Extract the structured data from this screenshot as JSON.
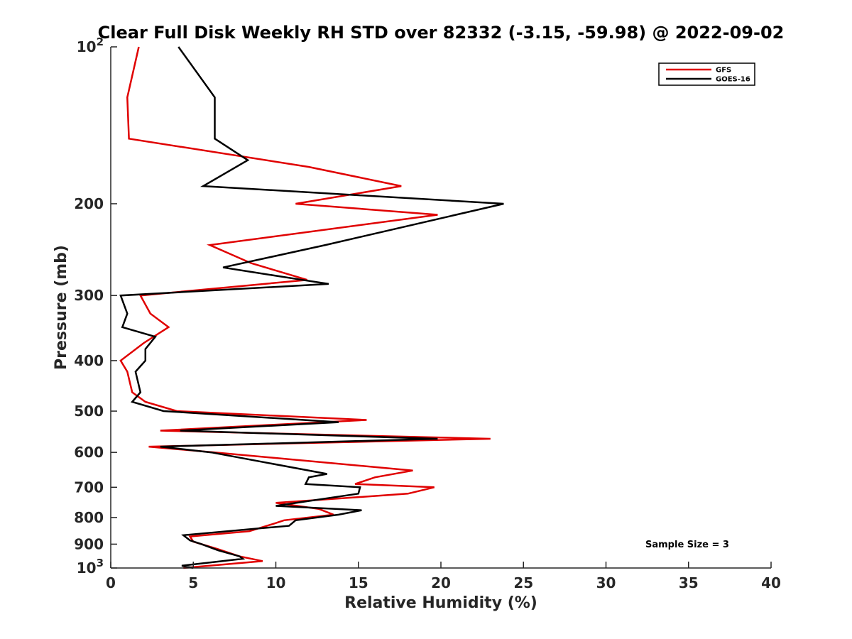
{
  "chart_data": {
    "type": "line",
    "title": "Clear Full Disk Weekly RH STD over 82332 (-3.15, -59.98) @ 2022-09-02",
    "xlabel": "Relative Humidity (%)",
    "ylabel": "Pressure (mb)",
    "xlim": [
      0,
      40
    ],
    "ylim": [
      100,
      1000
    ],
    "y_scale": "log",
    "y_reversed": true,
    "x_ticks": [
      "0",
      "5",
      "10",
      "15",
      "20",
      "25",
      "30",
      "35",
      "40"
    ],
    "y_ticks": [
      {
        "value": 100,
        "label": "10",
        "sup": "2"
      },
      {
        "value": 200,
        "label": "200",
        "sup": ""
      },
      {
        "value": 300,
        "label": "300",
        "sup": ""
      },
      {
        "value": 400,
        "label": "400",
        "sup": ""
      },
      {
        "value": 500,
        "label": "500",
        "sup": ""
      },
      {
        "value": 600,
        "label": "600",
        "sup": ""
      },
      {
        "value": 700,
        "label": "700",
        "sup": ""
      },
      {
        "value": 800,
        "label": "800",
        "sup": ""
      },
      {
        "value": 900,
        "label": "900",
        "sup": ""
      },
      {
        "value": 1000,
        "label": "10",
        "sup": "3"
      }
    ],
    "grid": false,
    "legend_position": "top-right",
    "annotation": "Sample Size = 3",
    "series": [
      {
        "name": "GFS",
        "color": "#e00000",
        "points": [
          [
            1.7,
            100
          ],
          [
            1.0,
            125
          ],
          [
            1.1,
            150
          ],
          [
            12.0,
            170
          ],
          [
            17.6,
            185
          ],
          [
            11.2,
            200
          ],
          [
            19.8,
            210
          ],
          [
            6.0,
            240
          ],
          [
            8.5,
            260
          ],
          [
            11.9,
            280
          ],
          [
            1.8,
            300
          ],
          [
            2.4,
            325
          ],
          [
            3.5,
            345
          ],
          [
            2.0,
            370
          ],
          [
            0.6,
            400
          ],
          [
            1.0,
            420
          ],
          [
            1.3,
            460
          ],
          [
            2.1,
            480
          ],
          [
            4.0,
            500
          ],
          [
            15.5,
            520
          ],
          [
            3.0,
            545
          ],
          [
            23.0,
            565
          ],
          [
            2.3,
            585
          ],
          [
            6.3,
            600
          ],
          [
            18.3,
            650
          ],
          [
            16.0,
            670
          ],
          [
            14.8,
            690
          ],
          [
            19.6,
            700
          ],
          [
            18.0,
            720
          ],
          [
            10.0,
            750
          ],
          [
            12.6,
            770
          ],
          [
            13.5,
            790
          ],
          [
            10.5,
            810
          ],
          [
            10.0,
            820
          ],
          [
            8.4,
            850
          ],
          [
            4.8,
            870
          ],
          [
            5.0,
            890
          ],
          [
            6.5,
            920
          ],
          [
            7.8,
            950
          ],
          [
            9.2,
            970
          ],
          [
            6.0,
            990
          ],
          [
            4.4,
            1000
          ]
        ]
      },
      {
        "name": "GOES-16",
        "color": "#000000",
        "points": [
          [
            4.1,
            100
          ],
          [
            6.3,
            125
          ],
          [
            6.3,
            150
          ],
          [
            8.3,
            165
          ],
          [
            5.6,
            185
          ],
          [
            23.8,
            200
          ],
          [
            13.0,
            240
          ],
          [
            6.8,
            265
          ],
          [
            11.6,
            280
          ],
          [
            13.2,
            285
          ],
          [
            0.6,
            300
          ],
          [
            1.0,
            325
          ],
          [
            0.7,
            345
          ],
          [
            2.7,
            360
          ],
          [
            2.1,
            380
          ],
          [
            2.1,
            400
          ],
          [
            1.5,
            420
          ],
          [
            1.8,
            460
          ],
          [
            1.3,
            480
          ],
          [
            3.2,
            500
          ],
          [
            13.8,
            525
          ],
          [
            4.2,
            545
          ],
          [
            19.8,
            565
          ],
          [
            3.0,
            585
          ],
          [
            6.1,
            600
          ],
          [
            13.1,
            660
          ],
          [
            12.0,
            670
          ],
          [
            11.8,
            690
          ],
          [
            15.1,
            700
          ],
          [
            15.0,
            720
          ],
          [
            10.0,
            760
          ],
          [
            15.2,
            775
          ],
          [
            13.8,
            790
          ],
          [
            11.2,
            810
          ],
          [
            10.8,
            830
          ],
          [
            8.9,
            840
          ],
          [
            4.4,
            865
          ],
          [
            4.8,
            885
          ],
          [
            5.5,
            900
          ],
          [
            6.5,
            925
          ],
          [
            7.8,
            950
          ],
          [
            8.0,
            960
          ],
          [
            4.3,
            990
          ],
          [
            5.0,
            1000
          ]
        ]
      }
    ]
  }
}
